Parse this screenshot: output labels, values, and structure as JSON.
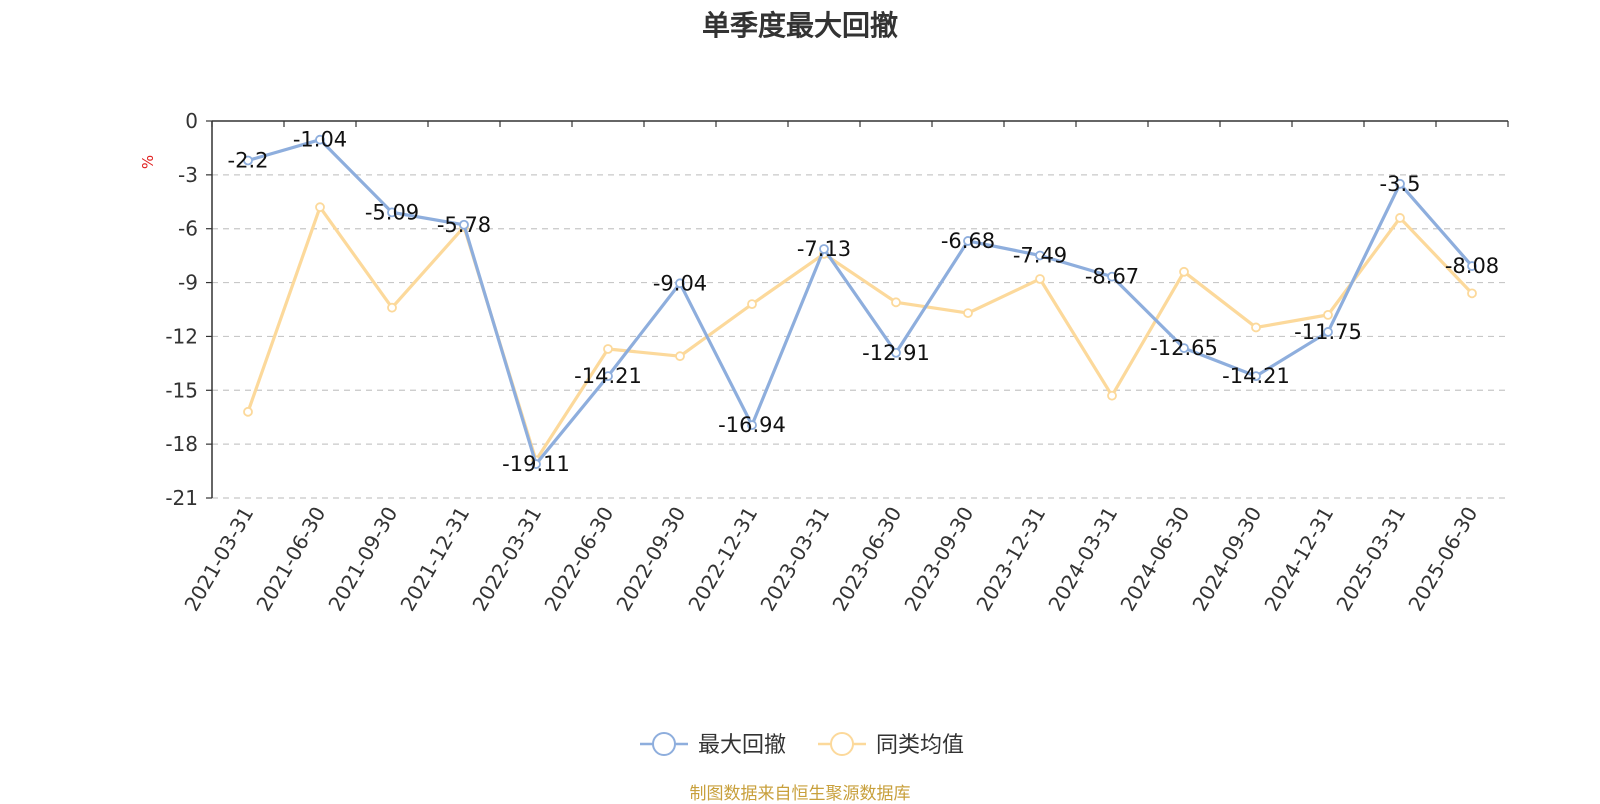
{
  "chart_data": {
    "type": "line",
    "title": "单季度最大回撤",
    "unit": "%",
    "categories": [
      "2021-03-31",
      "2021-06-30",
      "2021-09-30",
      "2021-12-31",
      "2022-03-31",
      "2022-06-30",
      "2022-09-30",
      "2022-12-31",
      "2023-03-31",
      "2023-06-30",
      "2023-09-30",
      "2023-12-31",
      "2024-03-31",
      "2024-06-30",
      "2024-09-30",
      "2024-12-31",
      "2025-03-31",
      "2025-06-30"
    ],
    "series": [
      {
        "name": "最大回撤",
        "color": "#8eaedd",
        "show_labels": true,
        "values": [
          -2.2,
          -1.04,
          -5.09,
          -5.78,
          -19.11,
          -14.21,
          -9.04,
          -16.94,
          -7.13,
          -12.91,
          -6.68,
          -7.49,
          -8.67,
          -12.65,
          -14.21,
          -11.75,
          -3.5,
          -8.08
        ]
      },
      {
        "name": "同类均值",
        "color": "#fcd99b",
        "show_labels": false,
        "values": [
          -16.2,
          -4.8,
          -10.4,
          -5.9,
          -18.9,
          -12.7,
          -13.1,
          -10.2,
          -7.4,
          -10.1,
          -10.7,
          -8.8,
          -15.3,
          -8.4,
          -11.5,
          -10.8,
          -5.4,
          -9.6
        ]
      }
    ],
    "ylim": [
      -21,
      0
    ],
    "yticks": [
      0,
      -3,
      -6,
      -9,
      -12,
      -15,
      -18,
      -21
    ],
    "grid": true,
    "legend_position": "bottom"
  },
  "source_text": "制图数据来自恒生聚源数据库"
}
